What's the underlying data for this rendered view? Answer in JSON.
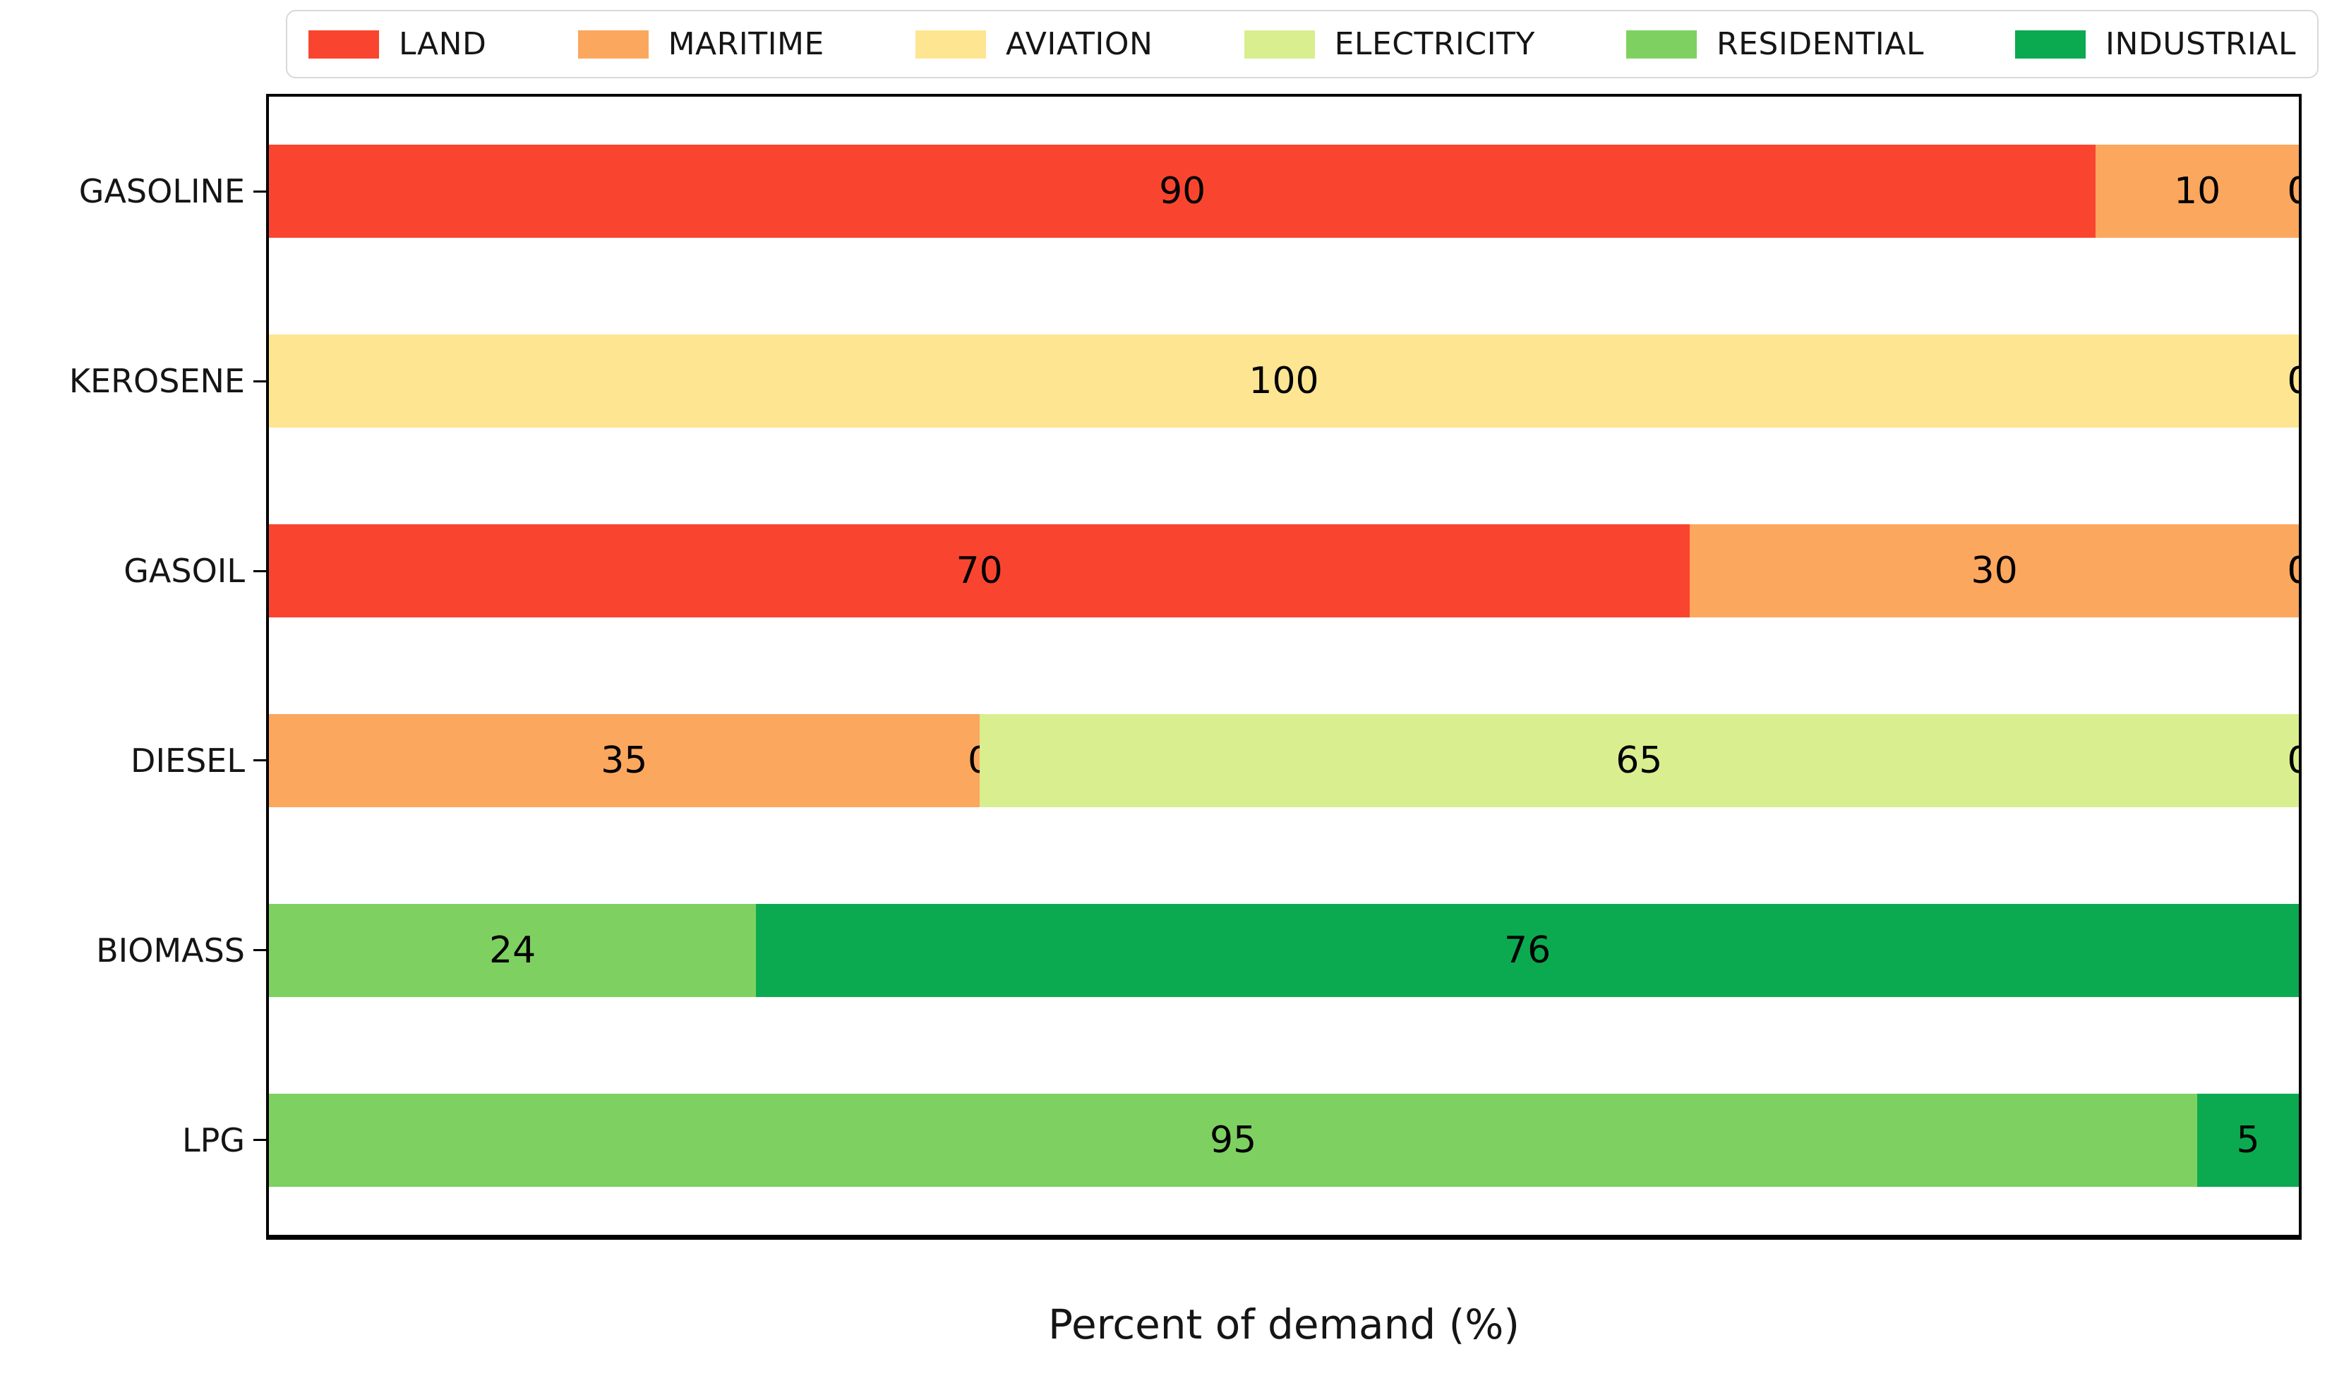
{
  "chart_data": {
    "type": "bar",
    "orientation": "horizontal",
    "stacked": true,
    "title": "",
    "xlabel": "Percent of demand (%)",
    "ylabel": "",
    "xlim": [
      0,
      100
    ],
    "grid": false,
    "legend_position": "top",
    "bar_value_labels": true,
    "categories": [
      "GASOLINE",
      "KEROSENE",
      "GASOIL",
      "DIESEL",
      "BIOMASS",
      "LPG"
    ],
    "series": [
      {
        "name": "LAND",
        "color": "#f9452f",
        "values": [
          90,
          0,
          70,
          0,
          0,
          0
        ]
      },
      {
        "name": "MARITIME",
        "color": "#fca75e",
        "values": [
          10,
          0,
          30,
          35,
          0,
          0
        ]
      },
      {
        "name": "AVIATION",
        "color": "#fde592",
        "values": [
          0,
          100,
          0,
          0,
          0,
          0
        ]
      },
      {
        "name": "ELECTRICITY",
        "color": "#d9ee8f",
        "values": [
          0,
          0,
          0,
          65,
          0,
          0
        ]
      },
      {
        "name": "RESIDENTIAL",
        "color": "#7ed161",
        "values": [
          0,
          0,
          0,
          0,
          24,
          95
        ]
      },
      {
        "name": "INDUSTRIAL",
        "color": "#0caa50",
        "values": [
          0,
          0,
          0,
          0,
          76,
          5
        ]
      }
    ]
  },
  "colors": {
    "spine": "#000000",
    "text": "#151515",
    "legend_border": "#d9d9d9",
    "background": "#ffffff"
  }
}
